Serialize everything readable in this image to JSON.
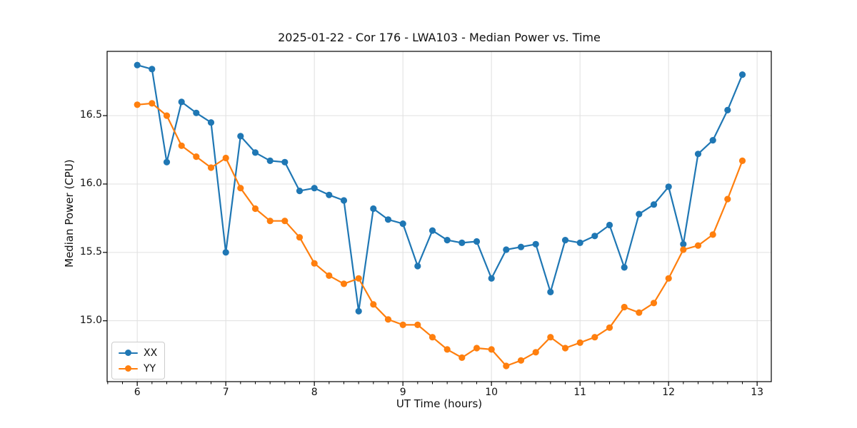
{
  "chart_data": {
    "type": "line",
    "title": "2025-01-22 - Cor 176 - LWA103 - Median Power vs. Time",
    "xlabel": "UT Time (hours)",
    "ylabel": "Median Power (CPU)",
    "xlim": [
      5.66,
      13.16
    ],
    "ylim": [
      14.555,
      16.97
    ],
    "xticks": [
      6,
      7,
      8,
      9,
      10,
      11,
      12,
      13
    ],
    "yticks": [
      15.0,
      15.5,
      16.0,
      16.5
    ],
    "ytick_labels": [
      "15.0",
      "15.5",
      "16.0",
      "16.5"
    ],
    "x_minor_tick_step_hours": 0.16667,
    "grid": true,
    "legend_position": "lower-left",
    "grid_color": "#e0e0e0",
    "axis_color": "#000000",
    "text_color": "#111111",
    "x": [
      6,
      6.1667,
      6.3333,
      6.5,
      6.6667,
      6.8333,
      7,
      7.1667,
      7.3333,
      7.5,
      7.6667,
      7.8333,
      8,
      8.1667,
      8.3333,
      8.5,
      8.6667,
      8.8333,
      9,
      9.1667,
      9.3333,
      9.5,
      9.6667,
      9.8333,
      10,
      10.1667,
      10.3333,
      10.5,
      10.6667,
      10.8333,
      11,
      11.1667,
      11.3333,
      11.5,
      11.6667,
      11.8333,
      12,
      12.1667,
      12.3333,
      12.5,
      12.6667,
      12.8333
    ],
    "series": [
      {
        "name": "XX",
        "color": "#1f77b4",
        "values": [
          16.87,
          16.84,
          16.16,
          16.6,
          16.52,
          16.45,
          15.5,
          16.35,
          16.23,
          16.17,
          16.16,
          15.95,
          15.97,
          15.92,
          15.88,
          15.07,
          15.82,
          15.74,
          15.71,
          15.4,
          15.66,
          15.59,
          15.57,
          15.58,
          15.31,
          15.52,
          15.54,
          15.56,
          15.21,
          15.59,
          15.57,
          15.62,
          15.7,
          15.39,
          15.78,
          15.85,
          15.98,
          15.56,
          16.22,
          16.32,
          16.54,
          16.8
        ]
      },
      {
        "name": "YY",
        "color": "#ff7f0e",
        "values": [
          16.58,
          16.59,
          16.5,
          16.28,
          16.2,
          16.12,
          16.19,
          15.97,
          15.82,
          15.73,
          15.73,
          15.61,
          15.42,
          15.33,
          15.27,
          15.31,
          15.12,
          15.01,
          14.97,
          14.97,
          14.88,
          14.79,
          14.73,
          14.8,
          14.79,
          14.67,
          14.71,
          14.77,
          14.88,
          14.8,
          14.84,
          14.88,
          14.95,
          15.1,
          15.06,
          15.13,
          15.31,
          15.52,
          15.55,
          15.63,
          15.89,
          16.17
        ]
      }
    ]
  }
}
